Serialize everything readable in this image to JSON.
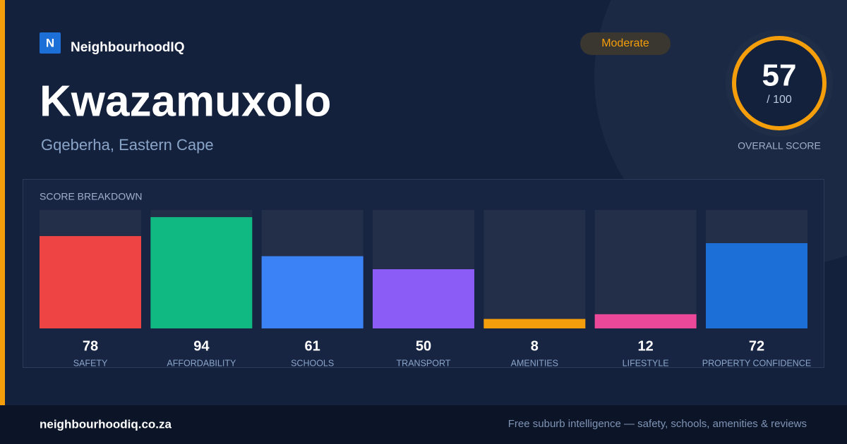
{
  "header": {
    "logo_letter": "N",
    "brand": "NeighbourhoodIQ",
    "title": "Kwazamuxolo",
    "location": "Gqeberha, Eastern Cape",
    "badge": "Moderate"
  },
  "overall": {
    "score": 57,
    "out_of": "/ 100",
    "label": "OVERALL SCORE"
  },
  "chart_data": {
    "type": "bar",
    "title": "SCORE BREAKDOWN",
    "categories": [
      "SAFETY",
      "AFFORDABILITY",
      "SCHOOLS",
      "TRANSPORT",
      "AMENITIES",
      "LIFESTYLE",
      "PROPERTY CONFIDENCE"
    ],
    "values": [
      78,
      94,
      61,
      50,
      8,
      12,
      72
    ],
    "colors": [
      "#ef4444",
      "#10b981",
      "#3b82f6",
      "#8b5cf6",
      "#f59e0b",
      "#ec4899",
      "#1d6fd8"
    ],
    "ylim": [
      0,
      100
    ]
  },
  "footer": {
    "site": "neighbourhoodiq.co.za",
    "tagline": "Free suburb intelligence — safety, schools, amenities & reviews"
  }
}
